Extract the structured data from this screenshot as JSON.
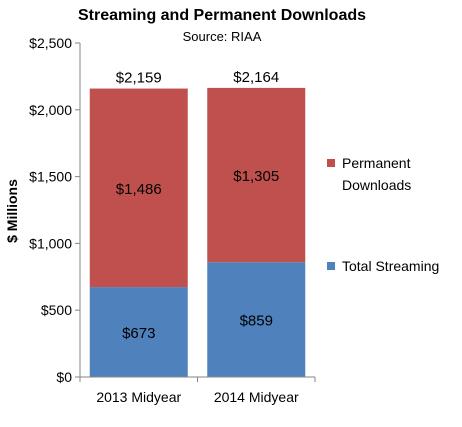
{
  "chart_data": {
    "type": "bar",
    "stacked": true,
    "title": "Streaming and Permanent Downloads",
    "subtitle": "Source: RIAA",
    "ylabel": "$ Millions",
    "xlabel": "",
    "categories": [
      "2013 Midyear",
      "2014 Midyear"
    ],
    "ylim": [
      0,
      2500
    ],
    "yticks": [
      {
        "value": 0,
        "label": "$0"
      },
      {
        "value": 500,
        "label": "$500"
      },
      {
        "value": 1000,
        "label": "$1,000"
      },
      {
        "value": 1500,
        "label": "$1,500"
      },
      {
        "value": 2000,
        "label": "$2,000"
      },
      {
        "value": 2500,
        "label": "$2,500"
      }
    ],
    "series": [
      {
        "name": "Total Streaming",
        "values": [
          673,
          859
        ],
        "labels": [
          "$673",
          "$859"
        ],
        "color": "#4f81bd"
      },
      {
        "name": "Permanent Downloads",
        "values": [
          1486,
          1305
        ],
        "labels": [
          "$1,486",
          "$1,305"
        ],
        "color": "#c0504d"
      }
    ],
    "totals": [
      2159,
      2164
    ],
    "total_labels": [
      "$2,159",
      "$2,164"
    ],
    "legend": {
      "placement": "right",
      "entries": [
        {
          "series": "Permanent Downloads",
          "lines": [
            "Permanent",
            "Downloads"
          ]
        },
        {
          "series": "Total Streaming",
          "lines": [
            "Total Streaming"
          ]
        }
      ]
    },
    "grid": false
  }
}
